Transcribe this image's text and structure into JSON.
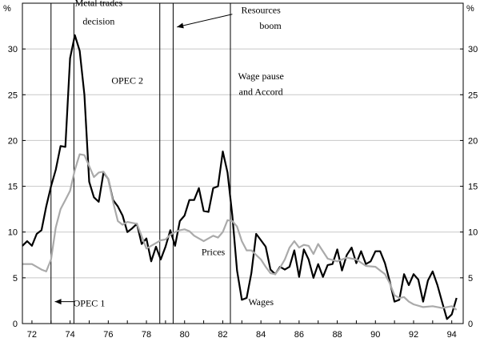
{
  "chart_data": {
    "type": "line",
    "title": "",
    "xlabel": "",
    "ylabel": "%",
    "y2label": "%",
    "xlim": [
      1971.5,
      1994.6
    ],
    "ylim": [
      0,
      35
    ],
    "x_ticks": [
      72,
      74,
      76,
      78,
      80,
      82,
      84,
      86,
      88,
      90,
      92,
      94
    ],
    "y_ticks": [
      0,
      5,
      10,
      15,
      20,
      25,
      30
    ],
    "grid": "horizontal",
    "legend": "none",
    "series": [
      {
        "name": "Wages",
        "color": "#000000",
        "x": [
          1971.5,
          1971.75,
          1972,
          1972.25,
          1972.5,
          1972.75,
          1973,
          1973.25,
          1973.5,
          1973.75,
          1974,
          1974.25,
          1974.5,
          1974.75,
          1975,
          1975.25,
          1975.5,
          1975.75,
          1976,
          1976.25,
          1976.5,
          1976.75,
          1977,
          1977.25,
          1977.5,
          1977.75,
          1978,
          1978.25,
          1978.5,
          1978.75,
          1979,
          1979.25,
          1979.5,
          1979.75,
          1980,
          1980.25,
          1980.5,
          1980.75,
          1981,
          1981.25,
          1981.5,
          1981.75,
          1982,
          1982.25,
          1982.5,
          1982.75,
          1983,
          1983.25,
          1983.5,
          1983.75,
          1984,
          1984.25,
          1984.5,
          1984.75,
          1985,
          1985.25,
          1985.5,
          1985.75,
          1986,
          1986.25,
          1986.5,
          1986.75,
          1987,
          1987.25,
          1987.5,
          1987.75,
          1988,
          1988.25,
          1988.5,
          1988.75,
          1989,
          1989.25,
          1989.5,
          1989.75,
          1990,
          1990.25,
          1990.5,
          1990.75,
          1991,
          1991.25,
          1991.5,
          1991.75,
          1992,
          1992.25,
          1992.5,
          1992.75,
          1993,
          1993.25,
          1993.5,
          1993.75,
          1994,
          1994.25
        ],
        "values": [
          8.5,
          9.0,
          8.5,
          9.8,
          10.2,
          12.8,
          15.0,
          16.8,
          19.4,
          19.3,
          29.0,
          31.5,
          29.8,
          25.0,
          15.5,
          13.8,
          13.3,
          16.5,
          15.8,
          13.5,
          12.8,
          11.8,
          10.0,
          10.4,
          10.9,
          8.7,
          9.3,
          6.8,
          8.4,
          7.0,
          8.4,
          10.2,
          8.5,
          11.2,
          11.8,
          13.5,
          13.5,
          14.8,
          12.3,
          12.2,
          14.8,
          15.0,
          18.8,
          16.5,
          11.8,
          5.8,
          2.6,
          2.8,
          5.5,
          9.8,
          9.1,
          8.4,
          5.9,
          5.4,
          6.2,
          5.9,
          6.2,
          8.0,
          5.1,
          8.1,
          7.0,
          5.0,
          6.5,
          5.1,
          6.4,
          6.5,
          8.1,
          5.8,
          7.5,
          8.3,
          6.6,
          7.9,
          6.5,
          6.8,
          7.9,
          7.9,
          6.6,
          4.6,
          2.4,
          2.6,
          5.4,
          4.2,
          5.4,
          4.8,
          2.4,
          4.7,
          5.7,
          4.2,
          2.3,
          0.5,
          1.0,
          2.8
        ]
      },
      {
        "name": "Prices",
        "color": "#aaaaaa",
        "x": [
          1971.5,
          1972,
          1972.5,
          1972.75,
          1973,
          1973.25,
          1973.5,
          1973.75,
          1974,
          1974.25,
          1974.5,
          1974.75,
          1975,
          1975.25,
          1975.5,
          1975.75,
          1976,
          1976.25,
          1976.5,
          1976.75,
          1977,
          1977.5,
          1978,
          1978.5,
          1978.75,
          1979,
          1979.25,
          1979.5,
          1979.75,
          1980,
          1980.25,
          1980.5,
          1980.75,
          1981,
          1981.5,
          1981.75,
          1982,
          1982.25,
          1982.5,
          1982.75,
          1983,
          1983.25,
          1983.5,
          1983.75,
          1984,
          1984.25,
          1984.5,
          1984.75,
          1985,
          1985.25,
          1985.5,
          1985.75,
          1986,
          1986.25,
          1986.5,
          1986.75,
          1987,
          1987.5,
          1988,
          1988.5,
          1989,
          1989.5,
          1990,
          1990.25,
          1990.5,
          1990.75,
          1991,
          1991.25,
          1991.5,
          1991.75,
          1992,
          1992.5,
          1993,
          1993.5,
          1994,
          1994.25
        ],
        "values": [
          6.5,
          6.5,
          5.9,
          5.7,
          7.0,
          10.5,
          12.5,
          13.5,
          14.5,
          16.8,
          18.5,
          18.4,
          17.2,
          16.0,
          16.5,
          16.6,
          15.8,
          13.3,
          11.2,
          10.8,
          11.1,
          10.9,
          8.2,
          8.8,
          9.1,
          9.2,
          9.7,
          10.0,
          10.2,
          10.3,
          10.1,
          9.6,
          9.3,
          9.0,
          9.6,
          9.4,
          10.0,
          11.3,
          11.2,
          10.6,
          9.0,
          8.0,
          8.0,
          7.5,
          7.0,
          6.2,
          5.5,
          5.4,
          6.1,
          7.0,
          8.3,
          9.0,
          8.3,
          8.6,
          8.5,
          7.6,
          8.7,
          7.1,
          6.8,
          7.2,
          7.0,
          6.3,
          6.2,
          5.8,
          5.4,
          4.4,
          3.1,
          2.8,
          2.9,
          2.4,
          2.1,
          1.8,
          1.9,
          1.7,
          1.9,
          1.5
        ]
      }
    ],
    "vertical_markers": [
      1973.0,
      1974.2,
      1978.7,
      1979.4,
      1982.4
    ],
    "annotations": [
      {
        "text": "Metal trades",
        "x": 1975.5,
        "y": 34.7,
        "arrow": null
      },
      {
        "text": "decision",
        "x": 1975.5,
        "y": 32.7,
        "arrow": null
      },
      {
        "text": "OPEC 2",
        "x": 1977.0,
        "y": 26.2,
        "arrow": null
      },
      {
        "text": "Resources",
        "x": 1984.0,
        "y": 33.9,
        "arrow": null
      },
      {
        "text": "boom",
        "x": 1984.5,
        "y": 32.2,
        "arrow": {
          "x1": 1982.5,
          "y1": 33.8,
          "x2": 1979.6,
          "y2": 32.4
        }
      },
      {
        "text": "Wage pause",
        "x": 1984.0,
        "y": 26.7,
        "arrow": null
      },
      {
        "text": "and Accord",
        "x": 1984.0,
        "y": 25.0,
        "arrow": null
      },
      {
        "text": "Prices",
        "x": 1981.5,
        "y": 7.5,
        "arrow": null
      },
      {
        "text": "Wages",
        "x": 1984.0,
        "y": 2.0,
        "arrow": null
      },
      {
        "text": "OPEC 1",
        "x": 1975.0,
        "y": 1.9,
        "arrow": {
          "x1": 1974.2,
          "y1": 2.4,
          "x2": 1973.2,
          "y2": 2.4
        }
      }
    ]
  }
}
